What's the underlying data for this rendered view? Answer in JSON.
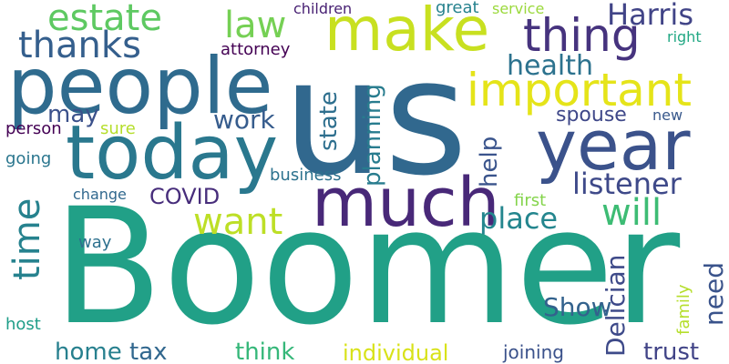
{
  "words": [
    {
      "name": "word-boomer",
      "text": "Boomer",
      "color": "#21a087"
    },
    {
      "name": "word-us",
      "text": "us",
      "color": "#31688e"
    },
    {
      "name": "word-people",
      "text": "people",
      "color": "#2f6b8e"
    },
    {
      "name": "word-today",
      "text": "today",
      "color": "#2a788e"
    },
    {
      "name": "word-year",
      "text": "year",
      "color": "#3b528b"
    },
    {
      "name": "word-much",
      "text": "much",
      "color": "#482878"
    },
    {
      "name": "word-make",
      "text": "make",
      "color": "#c8e020"
    },
    {
      "name": "word-important",
      "text": "important",
      "color": "#e5e419"
    },
    {
      "name": "word-thing",
      "text": "thing",
      "color": "#46337e"
    },
    {
      "name": "word-estate",
      "text": "estate",
      "color": "#5ec962"
    },
    {
      "name": "word-thanks",
      "text": "thanks",
      "color": "#355f8d"
    },
    {
      "name": "word-law",
      "text": "law",
      "color": "#75d054"
    },
    {
      "name": "word-harris",
      "text": "Harris",
      "color": "#414487"
    },
    {
      "name": "word-want",
      "text": "want",
      "color": "#bddf26"
    },
    {
      "name": "word-will",
      "text": "will",
      "color": "#3dbc74"
    },
    {
      "name": "word-time",
      "text": "time",
      "color": "#26828e"
    },
    {
      "name": "word-listener",
      "text": "listener",
      "color": "#3e4989"
    },
    {
      "name": "word-place",
      "text": "place",
      "color": "#24868e"
    },
    {
      "name": "word-health",
      "text": "health",
      "color": "#2c728e"
    },
    {
      "name": "word-work",
      "text": "work",
      "color": "#365c8d"
    },
    {
      "name": "word-covid",
      "text": "COVID",
      "color": "#472d7b"
    },
    {
      "name": "word-planning",
      "text": "planning",
      "color": "#287c8e"
    },
    {
      "name": "word-state",
      "text": "state",
      "color": "#2e6f8e"
    },
    {
      "name": "word-help",
      "text": "help",
      "color": "#3a548c"
    },
    {
      "name": "word-may",
      "text": "may",
      "color": "#3b518b"
    },
    {
      "name": "word-spouse",
      "text": "spouse",
      "color": "#3f4889"
    },
    {
      "name": "word-new",
      "text": "new",
      "color": "#38588c"
    },
    {
      "name": "word-delician",
      "text": "Delician",
      "color": "#3e4a89"
    },
    {
      "name": "word-need",
      "text": "need",
      "color": "#3a538b"
    },
    {
      "name": "word-show",
      "text": "Show",
      "color": "#33628d"
    },
    {
      "name": "word-family",
      "text": "family",
      "color": "#b5de2b"
    },
    {
      "name": "word-home",
      "text": "home",
      "color": "#27808e"
    },
    {
      "name": "word-tax",
      "text": "tax",
      "color": "#31678e"
    },
    {
      "name": "word-think",
      "text": "think",
      "color": "#35b779"
    },
    {
      "name": "word-individual",
      "text": "individual",
      "color": "#d8e219"
    },
    {
      "name": "word-joining",
      "text": "joining",
      "color": "#3b528b"
    },
    {
      "name": "word-trust",
      "text": "trust",
      "color": "#414487"
    },
    {
      "name": "word-host",
      "text": "host",
      "color": "#1f9e89"
    },
    {
      "name": "word-way",
      "text": "way",
      "color": "#2d708e"
    },
    {
      "name": "word-going",
      "text": "going",
      "color": "#2a768e"
    },
    {
      "name": "word-person",
      "text": "person",
      "color": "#440154"
    },
    {
      "name": "word-sure",
      "text": "sure",
      "color": "#b5de2b"
    },
    {
      "name": "word-business",
      "text": "business",
      "color": "#2c728e"
    },
    {
      "name": "word-change",
      "text": "change",
      "color": "#31688e"
    },
    {
      "name": "word-first",
      "text": "first",
      "color": "#84d44b"
    },
    {
      "name": "word-attorney",
      "text": "attorney",
      "color": "#440154"
    },
    {
      "name": "word-children",
      "text": "children",
      "color": "#482173"
    },
    {
      "name": "word-great",
      "text": "great",
      "color": "#26828e"
    },
    {
      "name": "word-service",
      "text": "service",
      "color": "#9bd93c"
    },
    {
      "name": "word-right",
      "text": "right",
      "color": "#22a884"
    }
  ]
}
